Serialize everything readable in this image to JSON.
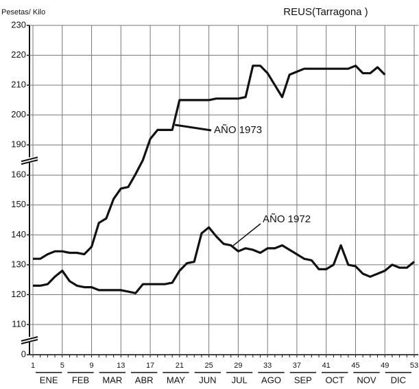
{
  "chart_data": {
    "type": "line",
    "title": "REUS(Tarragona )",
    "y_label": "Pesetas/ Kilo",
    "x": [
      1,
      2,
      3,
      4,
      5,
      6,
      7,
      8,
      9,
      10,
      11,
      12,
      13,
      14,
      15,
      16,
      17,
      18,
      19,
      20,
      21,
      22,
      23,
      24,
      25,
      26,
      27,
      28,
      29,
      30,
      31,
      32,
      33,
      34,
      35,
      36,
      37,
      38,
      39,
      40,
      41,
      42,
      43,
      44,
      45,
      46,
      47,
      48,
      49,
      50,
      51,
      52,
      53
    ],
    "xlim": [
      1,
      53
    ],
    "xticks": [
      1,
      5,
      9,
      13,
      17,
      21,
      25,
      29,
      33,
      37,
      41,
      45,
      49,
      53
    ],
    "categories": [
      "ENE",
      "FEB",
      "MAR",
      "ABR",
      "MAY",
      "JUN",
      "JUL",
      "AGO",
      "SEP",
      "OCT",
      "NOV",
      "DIC"
    ],
    "ylim": [
      0,
      230
    ],
    "yticks": [
      0,
      110,
      120,
      130,
      140,
      150,
      160,
      190,
      200,
      210,
      220,
      230
    ],
    "axis_breaks": [
      [
        0,
        110
      ],
      [
        160,
        190
      ]
    ],
    "grid": true,
    "series": [
      {
        "name": "AÑO 1972",
        "color": "#111111",
        "values": [
          123,
          123,
          123.5,
          126,
          128,
          124.5,
          123,
          122.5,
          122.5,
          121.5,
          121.5,
          121.5,
          121.5,
          121,
          120.5,
          123.5,
          123.5,
          123.5,
          123.5,
          124,
          128,
          130.5,
          131,
          140.5,
          142.5,
          139.5,
          137,
          136.5,
          134.5,
          135.5,
          135,
          134,
          135.5,
          135.5,
          136.5,
          135,
          133.5,
          132,
          131.5,
          128.5,
          128.5,
          130,
          136.5,
          130,
          129.5,
          127,
          126,
          127,
          128,
          130,
          129,
          129,
          131
        ]
      },
      {
        "name": "AÑO 1973",
        "color": "#111111",
        "values": [
          132,
          132,
          133.5,
          134.5,
          134.5,
          134,
          134,
          133.5,
          136,
          144,
          145.5,
          152,
          155.5,
          156,
          161,
          175,
          192,
          195,
          195,
          195,
          205,
          205,
          205,
          205,
          205,
          205.5,
          205.5,
          205.5,
          205.5,
          206,
          216.5,
          216.5,
          214,
          210,
          206,
          213.5,
          214.5,
          215.5,
          215.5,
          215.5,
          215.5,
          215.5,
          215.5,
          215.5,
          216.5,
          214,
          214,
          216,
          213.5,
          null,
          null,
          null,
          null
        ]
      }
    ]
  }
}
